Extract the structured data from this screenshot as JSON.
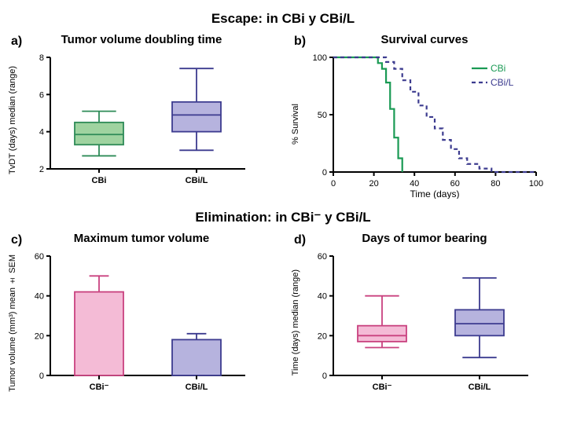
{
  "section1": {
    "title": "Escape: in CBi y CBi/L"
  },
  "section2": {
    "title": "Elimination: in CBi⁻ y CBi/L"
  },
  "panelA": {
    "letter": "a)",
    "title": "Tumor volume doubling time",
    "ylabel": "TvDT (days)\nmedian (range)",
    "xlabel": "",
    "type": "boxplot",
    "ylim": [
      2,
      8
    ],
    "ytick_step": 2,
    "categories": [
      "CBi",
      "CBi/L"
    ],
    "boxes": [
      {
        "min": 2.7,
        "q1": 3.3,
        "median": 3.85,
        "q3": 4.5,
        "max": 5.1,
        "fill": "#9fd3a0",
        "stroke": "#2e8b57"
      },
      {
        "min": 3.0,
        "q1": 4.0,
        "median": 4.9,
        "q3": 5.6,
        "max": 7.4,
        "fill": "#b6b3de",
        "stroke": "#3c3b8f"
      }
    ],
    "axis_color": "#000000",
    "tick_fontsize": 11,
    "box_width": 0.5
  },
  "panelB": {
    "letter": "b)",
    "title": "Survival curves",
    "ylabel": "% Survival",
    "xlabel": "Time (days)",
    "type": "survival-step",
    "xlim": [
      0,
      100
    ],
    "ylim": [
      0,
      100
    ],
    "xtick_step": 20,
    "ytick_step": 50,
    "legend": [
      {
        "label": "CBi",
        "color": "#1a9a54",
        "dash": false
      },
      {
        "label": "CBi/L",
        "color": "#3c3b8f",
        "dash": true
      }
    ],
    "series": {
      "CBi": {
        "color": "#1a9a54",
        "dash": false,
        "linewidth": 2.2,
        "points": [
          [
            0,
            100
          ],
          [
            22,
            100
          ],
          [
            22,
            95
          ],
          [
            24,
            95
          ],
          [
            24,
            90
          ],
          [
            26,
            90
          ],
          [
            26,
            78
          ],
          [
            28,
            78
          ],
          [
            28,
            55
          ],
          [
            30,
            55
          ],
          [
            30,
            30
          ],
          [
            32,
            30
          ],
          [
            32,
            12
          ],
          [
            34,
            12
          ],
          [
            34,
            0
          ]
        ]
      },
      "CBi/L": {
        "color": "#3c3b8f",
        "dash": true,
        "linewidth": 2.2,
        "points": [
          [
            0,
            100
          ],
          [
            26,
            100
          ],
          [
            26,
            96
          ],
          [
            30,
            96
          ],
          [
            30,
            90
          ],
          [
            34,
            90
          ],
          [
            34,
            80
          ],
          [
            38,
            80
          ],
          [
            38,
            70
          ],
          [
            42,
            70
          ],
          [
            42,
            58
          ],
          [
            46,
            58
          ],
          [
            46,
            48
          ],
          [
            50,
            48
          ],
          [
            50,
            38
          ],
          [
            54,
            38
          ],
          [
            54,
            28
          ],
          [
            58,
            28
          ],
          [
            58,
            20
          ],
          [
            62,
            20
          ],
          [
            62,
            12
          ],
          [
            66,
            12
          ],
          [
            66,
            7
          ],
          [
            72,
            7
          ],
          [
            72,
            3
          ],
          [
            78,
            3
          ],
          [
            78,
            0
          ],
          [
            100,
            0
          ]
        ]
      }
    },
    "axis_color": "#000000",
    "tick_fontsize": 11
  },
  "panelC": {
    "letter": "c)",
    "title": "Maximum tumor volume",
    "ylabel": "Tumor volume (mm³)\nmean ± SEM",
    "type": "bar",
    "ylim": [
      0,
      60
    ],
    "ytick_step": 20,
    "categories": [
      "CBi⁻",
      "CBi/L"
    ],
    "bars": [
      {
        "value": 42,
        "err": 8,
        "fill": "#f4bbd6",
        "stroke": "#c9427f"
      },
      {
        "value": 18,
        "err": 3,
        "fill": "#b6b3de",
        "stroke": "#3c3b8f"
      }
    ],
    "axis_color": "#000000",
    "tick_fontsize": 11,
    "bar_width": 0.5
  },
  "panelD": {
    "letter": "d)",
    "title": "Days of tumor bearing",
    "ylabel": "Time (days)\nmedian (range)",
    "type": "boxplot",
    "ylim": [
      0,
      60
    ],
    "ytick_step": 20,
    "categories": [
      "CBi⁻",
      "CBi/L"
    ],
    "boxes": [
      {
        "min": 14,
        "q1": 17,
        "median": 20,
        "q3": 25,
        "max": 40,
        "fill": "#f4bbd6",
        "stroke": "#c9427f"
      },
      {
        "min": 9,
        "q1": 20,
        "median": 26,
        "q3": 33,
        "max": 49,
        "fill": "#b6b3de",
        "stroke": "#3c3b8f"
      }
    ],
    "axis_color": "#000000",
    "tick_fontsize": 11,
    "box_width": 0.5
  }
}
